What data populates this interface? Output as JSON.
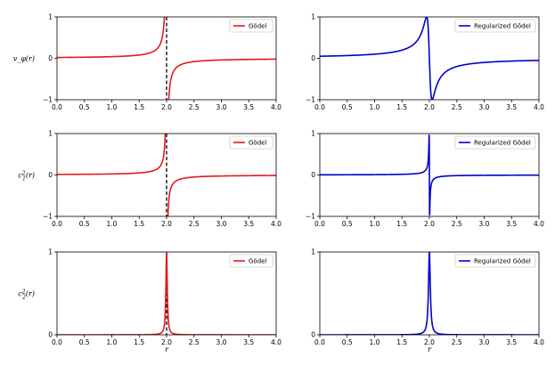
{
  "chart_data": [
    {
      "panel": "vphi-godel",
      "type": "line",
      "ylabel": "v_φ(r)",
      "xlabel": "",
      "xlim": [
        0,
        4
      ],
      "ylim": [
        -1,
        1
      ],
      "xticks": [
        "0.0",
        "0.5",
        "1.0",
        "1.5",
        "2.0",
        "2.5",
        "3.0",
        "3.5",
        "4.0"
      ],
      "yticks": [
        "−1",
        "0",
        "1"
      ],
      "function": "pole",
      "pole_x": 2.0,
      "scale": 0.04,
      "asymptote_x": 2.0,
      "series": [
        {
          "name": "Gödel",
          "color": "#e41a1c"
        }
      ],
      "legend_loc": "top-right"
    },
    {
      "panel": "vphi-regularized",
      "type": "line",
      "ylabel": "",
      "xlabel": "",
      "xlim": [
        0,
        4
      ],
      "ylim": [
        -1,
        1
      ],
      "xticks": [
        "0.0",
        "0.5",
        "1.0",
        "1.5",
        "2.0",
        "2.5",
        "3.0",
        "3.5",
        "4.0"
      ],
      "yticks": [
        "−1",
        "0",
        "1"
      ],
      "function": "regularized-pole",
      "pole_x": 2.0,
      "scale": 0.05,
      "series": [
        {
          "name": "Regularized Gödel",
          "color": "#0000cc"
        }
      ],
      "legend_loc": "top-right"
    },
    {
      "panel": "c1-godel",
      "type": "line",
      "ylabel": "c_1^2(r)",
      "xlabel": "",
      "xlim": [
        0,
        4
      ],
      "ylim": [
        -1,
        1
      ],
      "xticks": [
        "0.0",
        "0.5",
        "1.0",
        "1.5",
        "2.0",
        "2.5",
        "3.0",
        "3.5",
        "4.0"
      ],
      "yticks": [
        "−1",
        "0",
        "1"
      ],
      "function": "pole",
      "pole_x": 2.0,
      "scale": 0.025,
      "asymptote_x": 2.0,
      "series": [
        {
          "name": "Gödel",
          "color": "#e41a1c"
        }
      ],
      "legend_loc": "top-right"
    },
    {
      "panel": "c1-regularized",
      "type": "line",
      "ylabel": "",
      "xlabel": "",
      "xlim": [
        0,
        4
      ],
      "ylim": [
        -1,
        1
      ],
      "xticks": [
        "0.0",
        "0.5",
        "1.0",
        "1.5",
        "2.0",
        "2.5",
        "3.0",
        "3.5",
        "4.0"
      ],
      "yticks": [
        "−1",
        "0",
        "1"
      ],
      "function": "regularized-pole",
      "pole_x": 2.0,
      "scale": 0.004,
      "series": [
        {
          "name": "Regularized Gödel",
          "color": "#0000cc"
        }
      ],
      "legend_loc": "top-right"
    },
    {
      "panel": "c2-godel",
      "type": "line",
      "ylabel": "c_2^2(r)",
      "xlabel": "r",
      "xlim": [
        0,
        4
      ],
      "ylim": [
        0,
        1
      ],
      "xticks": [
        "0.0",
        "0.5",
        "1.0",
        "1.5",
        "2.0",
        "2.5",
        "3.0",
        "3.5",
        "4.0"
      ],
      "yticks": [
        "0",
        "1"
      ],
      "function": "peak",
      "pole_x": 2.0,
      "scale": 0.015,
      "asymptote_x": 2.0,
      "series": [
        {
          "name": "Gödel",
          "color": "#e41a1c"
        }
      ],
      "legend_loc": "top-right"
    },
    {
      "panel": "c2-regularized",
      "type": "line",
      "ylabel": "",
      "xlabel": "r",
      "xlim": [
        0,
        4
      ],
      "ylim": [
        0,
        1
      ],
      "xticks": [
        "0.0",
        "0.5",
        "1.0",
        "1.5",
        "2.0",
        "2.5",
        "3.0",
        "3.5",
        "4.0"
      ],
      "yticks": [
        "0",
        "1"
      ],
      "function": "peak",
      "pole_x": 2.0,
      "scale": 0.02,
      "series": [
        {
          "name": "Regularized Gödel",
          "color": "#0000cc"
        }
      ],
      "legend_loc": "top-right"
    }
  ]
}
